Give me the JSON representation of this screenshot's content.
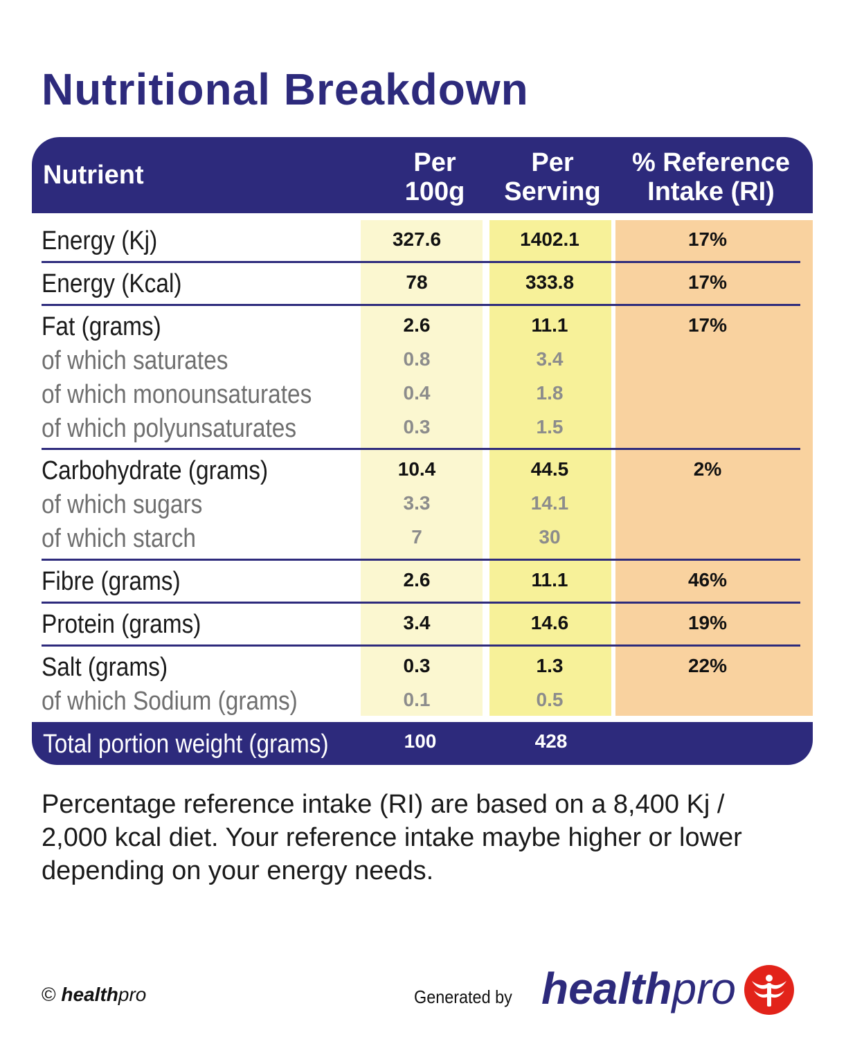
{
  "title": "Nutritional Breakdown",
  "header": {
    "nutrient": "Nutrient",
    "per_100g_1": "Per",
    "per_100g_2": "100g",
    "per_serving_1": "Per",
    "per_serving_2": "Serving",
    "ri_1": "% Reference",
    "ri_2": "Intake (RI)"
  },
  "rows": [
    {
      "label": "Energy (Kj)",
      "per_100g": "327.6",
      "per_serving": "1402.1",
      "ri": "17%",
      "sub": false
    },
    {
      "label": "Energy (Kcal)",
      "per_100g": "78",
      "per_serving": "333.8",
      "ri": "17%",
      "sub": false
    },
    {
      "label": "Fat (grams)",
      "per_100g": "2.6",
      "per_serving": "11.1",
      "ri": "17%",
      "sub": false
    },
    {
      "label": "of which saturates",
      "per_100g": "0.8",
      "per_serving": "3.4",
      "ri": "",
      "sub": true
    },
    {
      "label": "of which monounsaturates",
      "per_100g": "0.4",
      "per_serving": "1.8",
      "ri": "",
      "sub": true
    },
    {
      "label": "of which polyunsaturates",
      "per_100g": "0.3",
      "per_serving": "1.5",
      "ri": "",
      "sub": true
    },
    {
      "label": "Carbohydrate (grams)",
      "per_100g": "10.4",
      "per_serving": "44.5",
      "ri": "2%",
      "sub": false
    },
    {
      "label": "of which sugars",
      "per_100g": "3.3",
      "per_serving": "14.1",
      "ri": "",
      "sub": true
    },
    {
      "label": "of which starch",
      "per_100g": "7",
      "per_serving": "30",
      "ri": "",
      "sub": true
    },
    {
      "label": "Fibre (grams)",
      "per_100g": "2.6",
      "per_serving": "11.1",
      "ri": "46%",
      "sub": false
    },
    {
      "label": "Protein (grams)",
      "per_100g": "3.4",
      "per_serving": "14.6",
      "ri": "19%",
      "sub": false
    },
    {
      "label": "Salt (grams)",
      "per_100g": "0.3",
      "per_serving": "1.3",
      "ri": "22%",
      "sub": false
    },
    {
      "label": "of which Sodium (grams)",
      "per_100g": "0.1",
      "per_serving": "0.5",
      "ri": "",
      "sub": true
    }
  ],
  "total": {
    "label": "Total portion weight (grams)",
    "per_100g": "100",
    "per_serving": "428"
  },
  "note": "Percentage reference intake (RI) are based on a 8,400 Kj / 2,000 kcal diet. Your reference intake maybe higher or lower depending on your energy needs.",
  "footer": {
    "copyright_symbol": "©",
    "brand_bold": "health",
    "brand_italic": "pro",
    "generated_by": "Generated by",
    "logo_bold": "health",
    "logo_italic": "pro"
  },
  "colors": {
    "brand_navy": "#2d2a7c",
    "per_100g_bg": "#fbf7d0",
    "per_serving_bg": "#f7f199",
    "ri_bg": "#f9d29f",
    "logo_red": "#e2231a"
  }
}
